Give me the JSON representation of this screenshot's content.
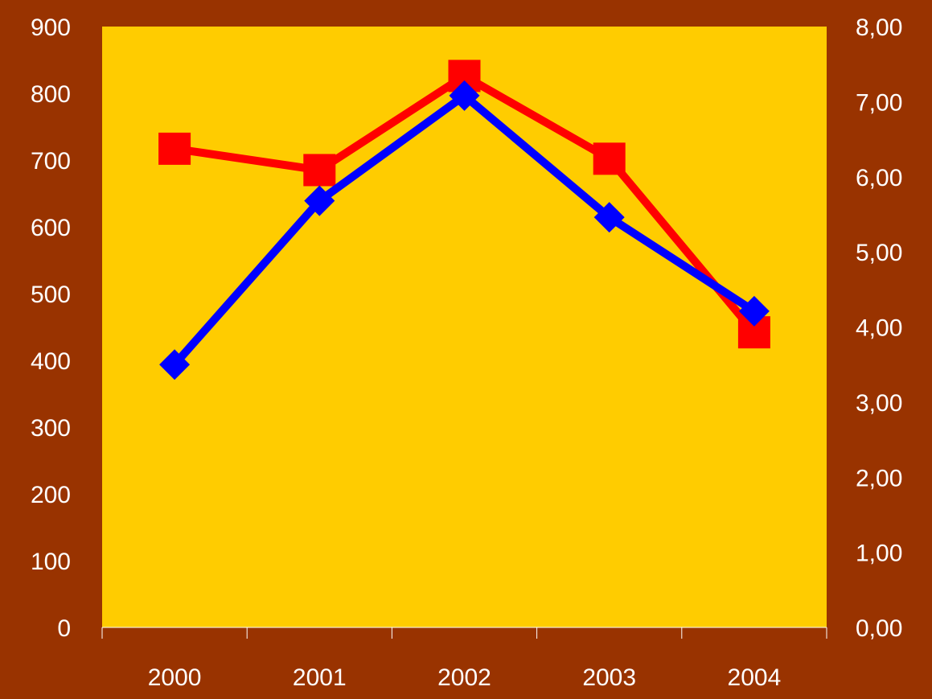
{
  "colors": {
    "background": "#993300",
    "plot_area": "#FFCC00",
    "series_red": "#FF0000",
    "series_blue": "#0000FF",
    "text": "#FFFFFF"
  },
  "chart_data": {
    "type": "line",
    "categories": [
      "2000",
      "2001",
      "2002",
      "2003",
      "2004"
    ],
    "y_left": {
      "ticks": [
        "0",
        "100",
        "200",
        "300",
        "400",
        "500",
        "600",
        "700",
        "800",
        "900"
      ],
      "ylim": [
        0,
        900
      ]
    },
    "y_right": {
      "ticks": [
        "0,00",
        "1,00",
        "2,00",
        "3,00",
        "4,00",
        "5,00",
        "6,00",
        "7,00",
        "8,00"
      ],
      "ylim": [
        0,
        8
      ]
    },
    "series": [
      {
        "axis": "left",
        "marker": "square",
        "color": "#FF0000",
        "values": [
          717,
          685,
          826,
          702,
          442
        ]
      },
      {
        "axis": "right",
        "marker": "diamond",
        "color": "#0000FF",
        "values": [
          3.5,
          5.68,
          7.08,
          5.46,
          4.21
        ]
      }
    ],
    "grid": false,
    "legend": "none"
  }
}
